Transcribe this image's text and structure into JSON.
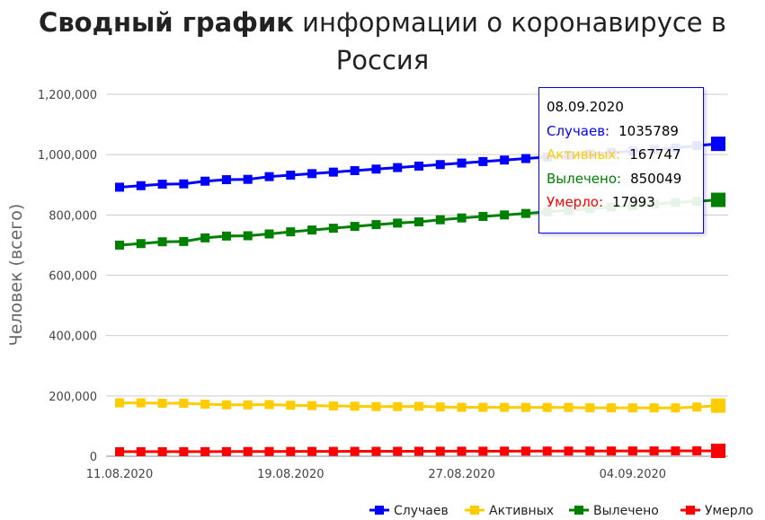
{
  "title_bold": "Сводный график",
  "title_rest": " информации о коронавирусе в Россия",
  "chart_data": {
    "type": "line",
    "ylabel": "Человек (всего)",
    "ylim": [
      0,
      1200000
    ],
    "yticks": [
      "0",
      "200,000",
      "400,000",
      "600,000",
      "800,000",
      "1,000,000",
      "1,200,000"
    ],
    "xticks": [
      "11.08.2020",
      "19.08.2020",
      "27.08.2020",
      "04.09.2020"
    ],
    "grid": true,
    "legend_position": "bottom-right",
    "x": [
      "11.08.2020",
      "12.08.2020",
      "13.08.2020",
      "14.08.2020",
      "15.08.2020",
      "16.08.2020",
      "17.08.2020",
      "18.08.2020",
      "19.08.2020",
      "20.08.2020",
      "21.08.2020",
      "22.08.2020",
      "23.08.2020",
      "24.08.2020",
      "25.08.2020",
      "26.08.2020",
      "27.08.2020",
      "28.08.2020",
      "29.08.2020",
      "30.08.2020",
      "31.08.2020",
      "01.09.2020",
      "02.09.2020",
      "03.09.2020",
      "04.09.2020",
      "05.09.2020",
      "06.09.2020",
      "07.09.2020",
      "08.09.2020"
    ],
    "series": [
      {
        "name": "Случаев",
        "color": "#0000ff",
        "values": [
          892000,
          897000,
          902000,
          903000,
          912000,
          917000,
          918000,
          927000,
          932000,
          937000,
          942000,
          947000,
          952000,
          957000,
          962000,
          967000,
          972000,
          977000,
          982000,
          987000,
          992000,
          997000,
          1002000,
          1007000,
          1012000,
          1017000,
          1022000,
          1030000,
          1035789
        ]
      },
      {
        "name": "Активных",
        "color": "#ffcc00",
        "values": [
          176900,
          176900,
          175800,
          175700,
          172600,
          170500,
          170300,
          171200,
          169000,
          167900,
          166800,
          165700,
          164600,
          164500,
          165400,
          163300,
          162200,
          162100,
          162000,
          161900,
          161800,
          161700,
          160600,
          160500,
          160400,
          160300,
          160200,
          163100,
          167747
        ]
      },
      {
        "name": "Вылечено",
        "color": "#008000",
        "values": [
          700000,
          705000,
          711000,
          712000,
          724000,
          730000,
          731000,
          737000,
          744000,
          750000,
          756000,
          762000,
          768000,
          773000,
          777000,
          784000,
          790000,
          795000,
          800000,
          805000,
          810000,
          815000,
          821000,
          826000,
          831000,
          836000,
          841000,
          845000,
          850049
        ]
      },
      {
        "name": "Умерло",
        "color": "#ff0000",
        "values": [
          15100,
          15200,
          15200,
          15300,
          15400,
          15500,
          15700,
          15800,
          15900,
          16000,
          16100,
          16200,
          16300,
          16400,
          16500,
          16600,
          16700,
          16800,
          16900,
          17000,
          17100,
          17200,
          17300,
          17400,
          17500,
          17600,
          17700,
          17900,
          17993
        ]
      }
    ]
  },
  "tooltip": {
    "date": "08.09.2020",
    "rows": [
      {
        "label": "Случаев:",
        "value": "1035789",
        "color": "#0000ff"
      },
      {
        "label": "Активных:",
        "value": "167747",
        "color": "#ffcc00"
      },
      {
        "label": "Вылечено:",
        "value": "850049",
        "color": "#008000"
      },
      {
        "label": "Умерло:",
        "value": "17993",
        "color": "#ff0000"
      }
    ]
  }
}
